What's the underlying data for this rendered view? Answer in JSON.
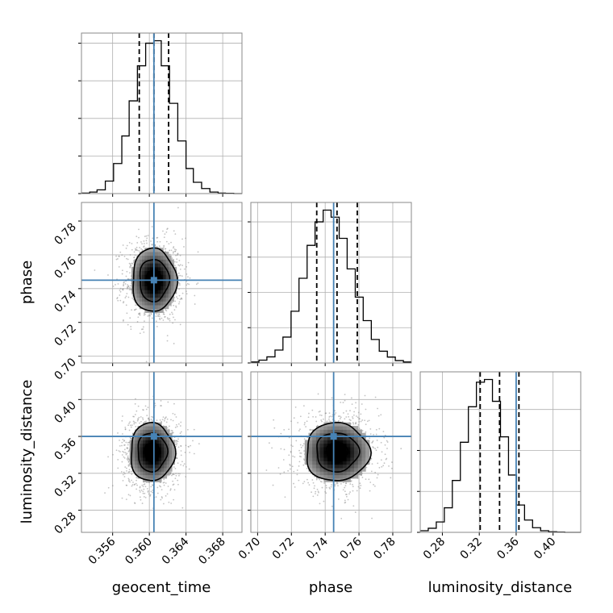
{
  "chart_data": {
    "type": "corner",
    "parameters": [
      "geocent_time",
      "phase",
      "luminosity_distance"
    ],
    "axis_labels": {
      "geocent_time": "geocent_time",
      "phase": "phase",
      "luminosity_distance": "luminosity_distance"
    },
    "ranges": {
      "geocent_time": [
        0.3526,
        0.3701
      ],
      "phase": [
        0.696,
        0.791
      ],
      "luminosity_distance": [
        0.256,
        0.43
      ]
    },
    "ticks": {
      "geocent_time": {
        "values": [
          0.356,
          0.36,
          0.364,
          0.368
        ],
        "labels": [
          "0.356",
          "0.360",
          "0.364",
          "0.368"
        ]
      },
      "phase": {
        "values": [
          0.7,
          0.72,
          0.74,
          0.76,
          0.78
        ],
        "labels": [
          "0.70",
          "0.72",
          "0.74",
          "0.76",
          "0.78"
        ]
      },
      "luminosity_distance": {
        "values": [
          0.28,
          0.32,
          0.36,
          0.4
        ],
        "labels": [
          "0.28",
          "0.32",
          "0.36",
          "0.40"
        ]
      }
    },
    "truths": {
      "geocent_time": 0.3605,
      "phase": 0.745,
      "luminosity_distance": 0.36
    },
    "quantiles": {
      "geocent_time": [
        0.3589,
        0.3605,
        0.3621
      ],
      "phase": [
        0.735,
        0.747,
        0.759
      ],
      "luminosity_distance": [
        0.321,
        0.342,
        0.363
      ]
    },
    "histograms": {
      "geocent_time": {
        "edges": [
          0.3526,
          0.3535,
          0.3543,
          0.3552,
          0.3561,
          0.357,
          0.3578,
          0.3587,
          0.3596,
          0.3605,
          0.3613,
          0.3622,
          0.3631,
          0.364,
          0.3648,
          0.3657,
          0.3666,
          0.3675,
          0.3683,
          0.3692,
          0.3701
        ],
        "counts": [
          0.2,
          0.6,
          1.5,
          5,
          12,
          23,
          37,
          51,
          60,
          61,
          51,
          36,
          21,
          10,
          4.5,
          2,
          0.6,
          0.2,
          0.1,
          0
        ]
      },
      "phase": {
        "edges": [
          0.696,
          0.7008,
          0.7055,
          0.7103,
          0.715,
          0.7198,
          0.7245,
          0.7293,
          0.734,
          0.7388,
          0.7435,
          0.7483,
          0.753,
          0.7578,
          0.7625,
          0.7673,
          0.772,
          0.7768,
          0.7815,
          0.7863,
          0.791
        ],
        "counts": [
          0.4,
          1.2,
          2.6,
          5.5,
          11,
          22,
          36,
          50,
          60,
          65,
          62,
          53,
          40,
          28,
          18,
          10,
          5,
          2.5,
          1,
          0.4
        ]
      },
      "luminosity_distance": {
        "edges": [
          0.256,
          0.2647,
          0.2734,
          0.2821,
          0.2908,
          0.2995,
          0.3082,
          0.3169,
          0.3256,
          0.3343,
          0.343,
          0.3517,
          0.3604,
          0.3691,
          0.3778,
          0.3865,
          0.3952,
          0.4039,
          0.4126,
          0.4213,
          0.43
        ],
        "counts": [
          0.6,
          1.5,
          3.8,
          9,
          19,
          33,
          46,
          55,
          56,
          48,
          35,
          21,
          10,
          4.5,
          1.7,
          0.6,
          0.2,
          0.1,
          0,
          0
        ]
      }
    },
    "pairs": [
      {
        "x": "geocent_time",
        "y": "phase",
        "center": [
          0.3605,
          0.745
        ],
        "sigma": [
          0.0016,
          0.0125
        ],
        "contour_levels": [
          0.5,
          1.0,
          1.5
        ]
      },
      {
        "x": "geocent_time",
        "y": "luminosity_distance",
        "center": [
          0.3603,
          0.343
        ],
        "sigma": [
          0.0016,
          0.021
        ],
        "contour_levels": [
          0.5,
          1.0,
          1.5
        ]
      },
      {
        "x": "phase",
        "y": "luminosity_distance",
        "center": [
          0.747,
          0.343
        ],
        "sigma": [
          0.0125,
          0.021
        ],
        "contour_levels": [
          0.5,
          1.0,
          1.5
        ]
      }
    ],
    "colors": {
      "truth": "#4682b4",
      "lines": "#000000",
      "grid": "#b0b0b0",
      "scatter": "#888888"
    },
    "grid": true,
    "title": ""
  }
}
